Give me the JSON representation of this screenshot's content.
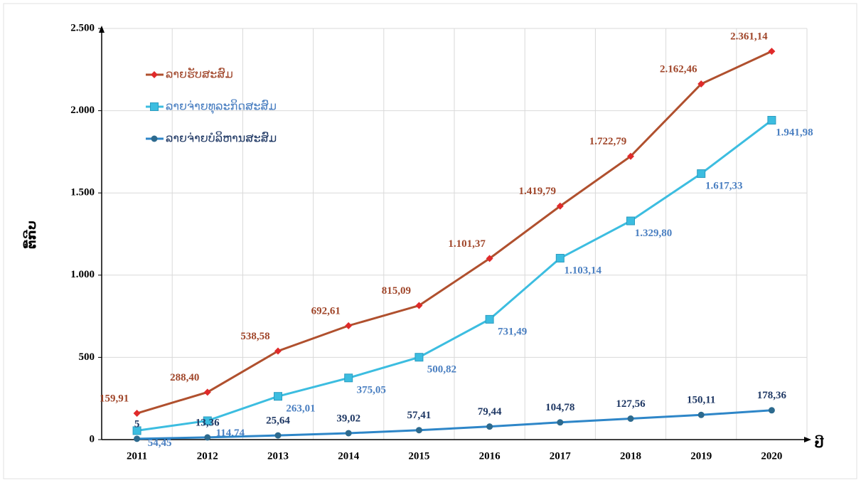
{
  "chart_data": {
    "type": "line",
    "y_label": "ຕື້ກີບ",
    "x_label": "ປີ",
    "categories": [
      "2011",
      "2012",
      "2013",
      "2014",
      "2015",
      "2016",
      "2017",
      "2018",
      "2019",
      "2020"
    ],
    "series": [
      {
        "name": "ລາຍຮັບສະສົມ",
        "color": "#b0502e",
        "marker": "diamond",
        "marker_color": "#e02a2a",
        "label_color": "#a0462a",
        "values": [
          159.91,
          288.4,
          538.58,
          692.61,
          815.09,
          1101.37,
          1419.79,
          1722.79,
          2162.46,
          2361.14
        ],
        "value_labels": [
          "159,91",
          "288,40",
          "538,58",
          "692,61",
          "815,09",
          "1.101,37",
          "1.419,79",
          "1.722,79",
          "2.162,46",
          "2.361,14"
        ]
      },
      {
        "name": "ລາຍຈ່າຍທຸລະກິດສະສົມ",
        "color": "#3cbde0",
        "marker": "square",
        "marker_color": "#3cbde0",
        "label_color": "#4a7fc1",
        "values": [
          54.45,
          114.74,
          263.01,
          375.05,
          500.82,
          731.49,
          1103.14,
          1329.8,
          1617.33,
          1941.98
        ],
        "value_labels": [
          "54,45",
          "114,74",
          "263,01",
          "375,05",
          "500,82",
          "731,49",
          "1.103,14",
          "1.329,80",
          "1.617,33",
          "1.941,98"
        ]
      },
      {
        "name": "ລາຍຈ່າຍບໍລິຫານສະສົມ",
        "color": "#2e86c8",
        "marker": "circle",
        "marker_color": "#2d6a8e",
        "label_color": "#1f3864",
        "values": [
          5,
          13.36,
          25.64,
          39.02,
          57.41,
          79.44,
          104.78,
          127.56,
          150.11,
          178.36
        ],
        "value_labels": [
          "5",
          "13,36",
          "25,64",
          "39,02",
          "57,41",
          "79,44",
          "104,78",
          "127,56",
          "150,11",
          "178,36"
        ]
      }
    ],
    "ylim": [
      0,
      2500
    ],
    "yticks": [
      0,
      500,
      {
        "value": 1000,
        "label": "1.000"
      },
      {
        "value": 1500,
        "label": "1.500"
      },
      {
        "value": 2000,
        "label": "2.000"
      },
      {
        "value": 2500,
        "label": "2.500"
      }
    ],
    "grid": true,
    "legend": "upper-left"
  }
}
